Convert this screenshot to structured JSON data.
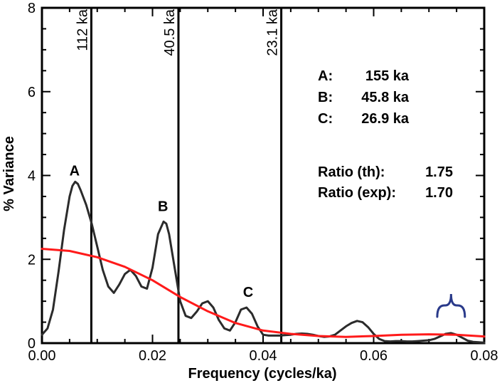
{
  "chart_data": {
    "type": "line",
    "xlabel": "Frequency (cycles/ka)",
    "ylabel": "% Variance",
    "xlim": [
      0,
      0.08
    ],
    "ylim": [
      0,
      8
    ],
    "xticks": [
      0.0,
      0.02,
      0.04,
      0.06,
      0.08
    ],
    "xtick_labels": [
      "0.00",
      "0.02",
      "0.04",
      "0.06",
      "0.08"
    ],
    "yticks": [
      0,
      2,
      4,
      6,
      8
    ],
    "ytick_labels": [
      "0",
      "2",
      "4",
      "6",
      "8"
    ],
    "grid": false,
    "colors": {
      "spectrum": "#2b2b2b",
      "background": "#ff1a1a",
      "axis": "#000000",
      "bracket": "#2a3a8a"
    },
    "series": [
      {
        "role": "spectrum",
        "x": [
          0.0,
          0.001,
          0.002,
          0.003,
          0.004,
          0.005,
          0.0055,
          0.006,
          0.0065,
          0.007,
          0.008,
          0.009,
          0.01,
          0.011,
          0.012,
          0.013,
          0.014,
          0.015,
          0.016,
          0.017,
          0.018,
          0.019,
          0.02,
          0.021,
          0.022,
          0.0225,
          0.023,
          0.024,
          0.025,
          0.026,
          0.027,
          0.028,
          0.029,
          0.03,
          0.031,
          0.032,
          0.033,
          0.034,
          0.035,
          0.036,
          0.037,
          0.038,
          0.039,
          0.04,
          0.041,
          0.042,
          0.043,
          0.044,
          0.045,
          0.046,
          0.047,
          0.048,
          0.049,
          0.05,
          0.051,
          0.052,
          0.053,
          0.054,
          0.055,
          0.056,
          0.057,
          0.058,
          0.059,
          0.06,
          0.061,
          0.062,
          0.063,
          0.064,
          0.065,
          0.066,
          0.067,
          0.068,
          0.069,
          0.07,
          0.071,
          0.072,
          0.073,
          0.074,
          0.075,
          0.076,
          0.077,
          0.078,
          0.079,
          0.08
        ],
        "y": [
          0.2,
          0.35,
          0.8,
          1.7,
          2.7,
          3.5,
          3.75,
          3.85,
          3.8,
          3.65,
          3.3,
          2.85,
          2.3,
          1.75,
          1.35,
          1.2,
          1.4,
          1.65,
          1.75,
          1.6,
          1.35,
          1.3,
          1.8,
          2.6,
          2.9,
          2.85,
          2.6,
          1.8,
          1.0,
          0.65,
          0.6,
          0.75,
          0.95,
          1.0,
          0.85,
          0.55,
          0.35,
          0.3,
          0.5,
          0.8,
          0.85,
          0.7,
          0.4,
          0.2,
          0.18,
          0.18,
          0.18,
          0.19,
          0.2,
          0.22,
          0.23,
          0.22,
          0.2,
          0.17,
          0.15,
          0.16,
          0.2,
          0.3,
          0.4,
          0.48,
          0.53,
          0.5,
          0.38,
          0.22,
          0.1,
          0.05,
          0.04,
          0.05,
          0.05,
          0.04,
          0.04,
          0.05,
          0.06,
          0.07,
          0.1,
          0.16,
          0.22,
          0.24,
          0.2,
          0.13,
          0.06,
          0.03,
          0.02,
          0.01
        ]
      },
      {
        "role": "background",
        "x": [
          0.0,
          0.005,
          0.01,
          0.015,
          0.02,
          0.025,
          0.03,
          0.035,
          0.04,
          0.045,
          0.05,
          0.055,
          0.06,
          0.065,
          0.07,
          0.075,
          0.08
        ],
        "y": [
          2.25,
          2.2,
          2.05,
          1.82,
          1.5,
          1.1,
          0.76,
          0.48,
          0.3,
          0.22,
          0.17,
          0.15,
          0.17,
          0.2,
          0.21,
          0.2,
          0.16
        ]
      }
    ],
    "period_lines": [
      {
        "x": 0.00893,
        "label": "112 ka"
      },
      {
        "x": 0.02469,
        "label": "40.5 ka"
      },
      {
        "x": 0.04329,
        "label": "23.1 ka"
      }
    ],
    "peak_labels": [
      {
        "text": "A",
        "x": 0.0059,
        "y": 4.0
      },
      {
        "text": "B",
        "x": 0.0219,
        "y": 3.15
      },
      {
        "text": "C",
        "x": 0.0373,
        "y": 1.1
      }
    ],
    "info_lines": [
      {
        "key": "A:",
        "value": "155 ka"
      },
      {
        "key": "B:",
        "value": "45.8 ka"
      },
      {
        "key": "C:",
        "value": "26.9 ka"
      }
    ],
    "ratio_lines": [
      {
        "key": "Ratio (th):",
        "value": "1.75"
      },
      {
        "key": "Ratio (exp):",
        "value": "1.70"
      }
    ],
    "bracket": {
      "x_start": 0.0715,
      "x_end": 0.0765,
      "y": 0.9
    }
  }
}
